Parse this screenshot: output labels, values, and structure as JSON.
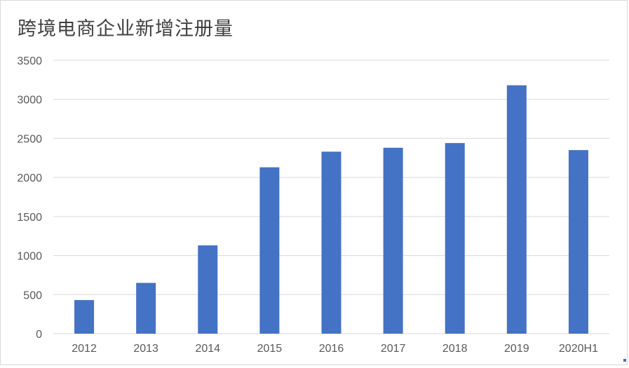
{
  "chart_data": {
    "type": "bar",
    "title": "跨境电商企业新增注册量",
    "xlabel": "",
    "ylabel": "",
    "categories": [
      "2012",
      "2013",
      "2014",
      "2015",
      "2016",
      "2017",
      "2018",
      "2019",
      "2020H1"
    ],
    "values": [
      430,
      650,
      1130,
      2130,
      2330,
      2380,
      2440,
      3180,
      2350
    ],
    "ylim": [
      0,
      3500
    ],
    "yticks": [
      "0",
      "500",
      "1000",
      "1500",
      "2000",
      "2500",
      "3000",
      "3500"
    ],
    "grid": true,
    "legend": "none",
    "bar_color": "#4472c4",
    "grid_color": "#d9d9d9"
  }
}
